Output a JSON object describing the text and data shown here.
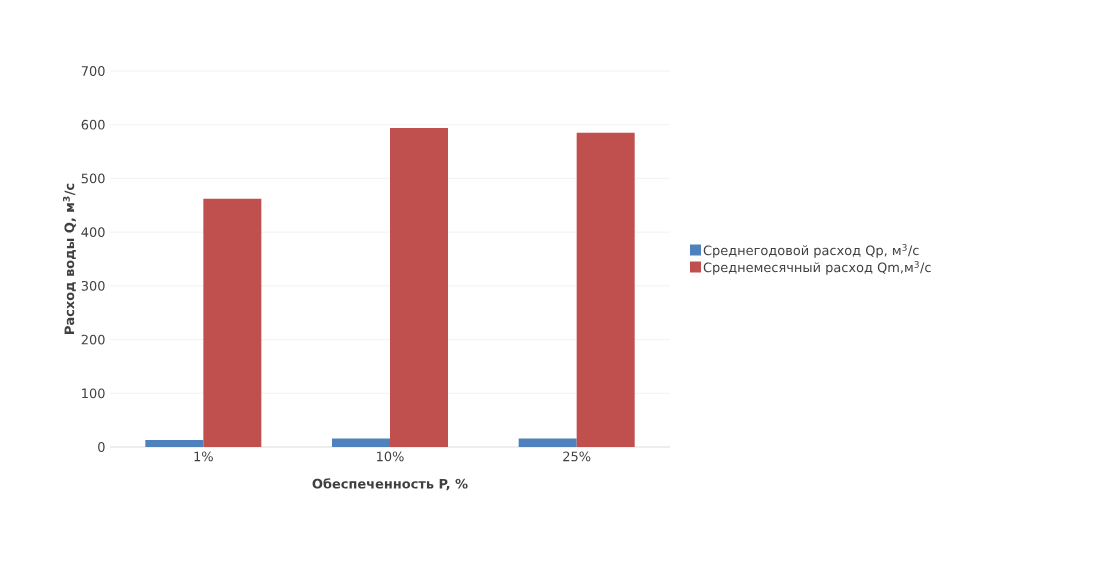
{
  "chart_data": {
    "type": "bar",
    "xlabel": "Обеспеченность P, %",
    "ylabel": "Расход воды Q, м$^{3}$/с",
    "categories": [
      "1%",
      "10%",
      "25%"
    ],
    "series": [
      {
        "name": "Среднегодовой расход Qp, м$^{3}$/с",
        "color": "#4f81bd",
        "values": [
          13,
          16,
          16
        ]
      },
      {
        "name": "Среднемесячный расход Qm,м$^{3}$/с",
        "color": "#c0504d",
        "values": [
          462,
          594,
          585
        ]
      }
    ],
    "ylim": [
      0,
      700
    ],
    "yticks": [
      0,
      100,
      200,
      300,
      400,
      500,
      600,
      700
    ],
    "grid": "y",
    "legend": "right"
  }
}
